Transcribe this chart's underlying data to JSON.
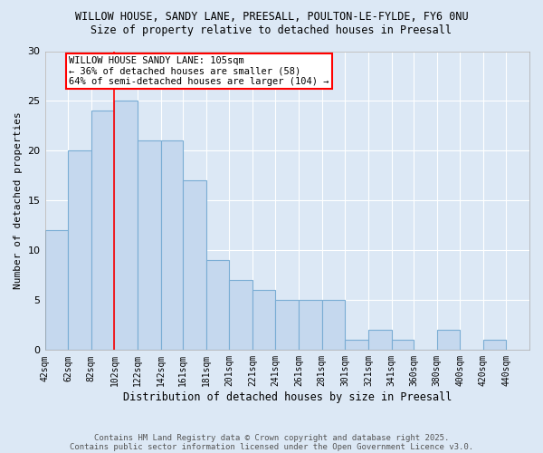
{
  "title1": "WILLOW HOUSE, SANDY LANE, PREESALL, POULTON-LE-FYLDE, FY6 0NU",
  "title2": "Size of property relative to detached houses in Preesall",
  "xlabel": "Distribution of detached houses by size in Preesall",
  "ylabel": "Number of detached properties",
  "bar_left_edges": [
    42,
    62,
    82,
    102,
    122,
    142,
    161,
    181,
    201,
    221,
    241,
    261,
    281,
    301,
    321,
    341,
    360,
    380,
    400,
    420
  ],
  "bar_widths": [
    20,
    20,
    20,
    20,
    20,
    19,
    20,
    20,
    20,
    20,
    20,
    20,
    20,
    20,
    20,
    19,
    20,
    20,
    20,
    20
  ],
  "bar_heights": [
    12,
    20,
    24,
    25,
    21,
    21,
    17,
    9,
    7,
    6,
    5,
    5,
    5,
    1,
    2,
    1,
    0,
    2,
    0,
    1
  ],
  "bar_color": "#c5d8ee",
  "bar_edge_color": "#7aadd4",
  "red_line_x": 102,
  "ylim": [
    0,
    30
  ],
  "yticks": [
    0,
    5,
    10,
    15,
    20,
    25,
    30
  ],
  "annotation_text": "WILLOW HOUSE SANDY LANE: 105sqm\n← 36% of detached houses are smaller (58)\n64% of semi-detached houses are larger (104) →",
  "footer1": "Contains HM Land Registry data © Crown copyright and database right 2025.",
  "footer2": "Contains public sector information licensed under the Open Government Licence v3.0.",
  "background_color": "#dce8f5",
  "plot_bg_color": "#dce8f5",
  "x_tick_labels": [
    "42sqm",
    "62sqm",
    "82sqm",
    "102sqm",
    "122sqm",
    "142sqm",
    "161sqm",
    "181sqm",
    "201sqm",
    "221sqm",
    "241sqm",
    "261sqm",
    "281sqm",
    "301sqm",
    "321sqm",
    "341sqm",
    "360sqm",
    "380sqm",
    "400sqm",
    "420sqm",
    "440sqm"
  ]
}
